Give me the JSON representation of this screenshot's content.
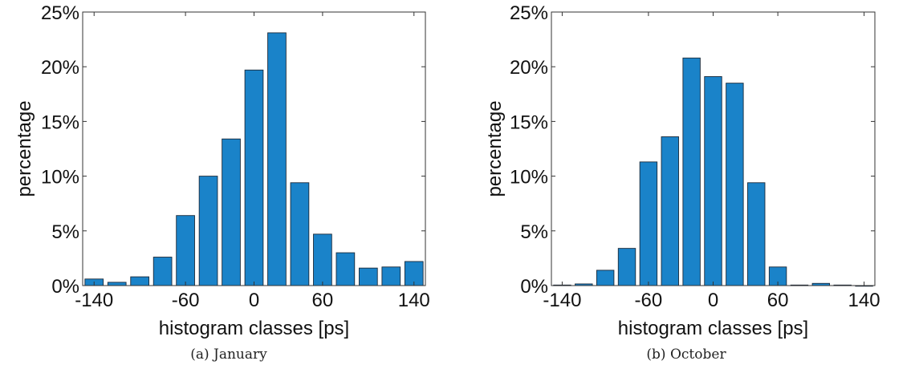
{
  "charts": [
    {
      "caption": "(a) January",
      "chart_data": {
        "type": "bar",
        "x": [
          -140,
          -120,
          -100,
          -80,
          -60,
          -40,
          -20,
          0,
          20,
          40,
          60,
          80,
          100,
          120,
          140
        ],
        "values": [
          0.6,
          0.3,
          0.8,
          2.6,
          6.4,
          10.0,
          13.4,
          19.7,
          23.1,
          9.4,
          4.7,
          3.0,
          1.6,
          1.7,
          2.2
        ],
        "xlabel": "histogram classes [ps]",
        "ylabel": "percentage",
        "xticks": [
          -140,
          -60,
          0,
          60,
          140
        ],
        "xtick_labels": [
          "-140",
          "-60",
          "0",
          "60",
          "140"
        ],
        "yticks": [
          0,
          5,
          10,
          15,
          20,
          25
        ],
        "ytick_labels": [
          "0%",
          "5%",
          "10%",
          "15%",
          "20%",
          "25%"
        ],
        "xlim": [
          -150,
          150
        ],
        "ylim": [
          0,
          25
        ],
        "bar_color": "#1a83c9",
        "grid": false
      }
    },
    {
      "caption": "(b) October",
      "chart_data": {
        "type": "bar",
        "x": [
          -140,
          -120,
          -100,
          -80,
          -60,
          -40,
          -20,
          0,
          20,
          40,
          60,
          80,
          100,
          120,
          140
        ],
        "values": [
          0.05,
          0.15,
          1.4,
          3.4,
          11.3,
          13.6,
          20.8,
          19.1,
          18.5,
          9.4,
          1.7,
          0.05,
          0.2,
          0.05,
          0
        ],
        "xlabel": "histogram classes [ps]",
        "ylabel": "percentage",
        "xticks": [
          -140,
          -60,
          0,
          60,
          140
        ],
        "xtick_labels": [
          "-140",
          "-60",
          "0",
          "60",
          "140"
        ],
        "yticks": [
          0,
          5,
          10,
          15,
          20,
          25
        ],
        "ytick_labels": [
          "0%",
          "5%",
          "10%",
          "15%",
          "20%",
          "25%"
        ],
        "xlim": [
          -150,
          150
        ],
        "ylim": [
          0,
          25
        ],
        "bar_color": "#1a83c9",
        "grid": false
      }
    }
  ]
}
